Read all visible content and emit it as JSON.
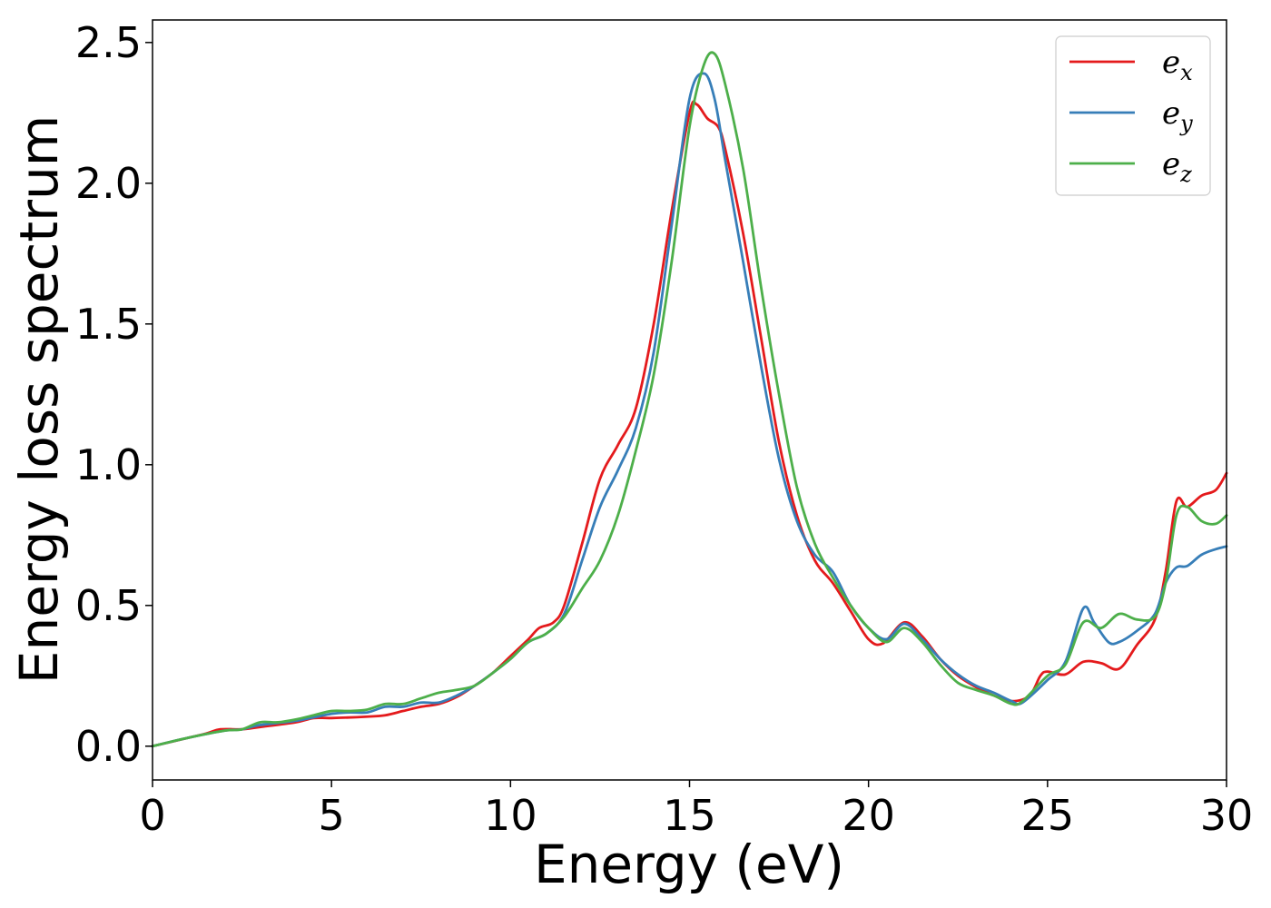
{
  "chart_data": {
    "type": "line",
    "title": "",
    "xlabel": "Energy (eV)",
    "ylabel": "Energy loss spectrum",
    "xlim": [
      0,
      30
    ],
    "ylim": [
      -0.12,
      2.58
    ],
    "xticks": [
      0,
      5,
      10,
      15,
      20,
      25,
      30
    ],
    "yticks": [
      0.0,
      0.5,
      1.0,
      1.5,
      2.0,
      2.5
    ],
    "xtick_labels": [
      "0",
      "5",
      "10",
      "15",
      "20",
      "25",
      "30"
    ],
    "ytick_labels": [
      "0.0",
      "0.5",
      "1.0",
      "1.5",
      "2.0",
      "2.5"
    ],
    "grid": false,
    "legend_position": "top-right",
    "series": [
      {
        "name": "e",
        "subscript": "x",
        "color": "#e41a1c",
        "points": [
          [
            0,
            0.0
          ],
          [
            1,
            0.03
          ],
          [
            1.5,
            0.045
          ],
          [
            1.9,
            0.06
          ],
          [
            2.5,
            0.06
          ],
          [
            3,
            0.068
          ],
          [
            4,
            0.085
          ],
          [
            4.5,
            0.1
          ],
          [
            5,
            0.1
          ],
          [
            6,
            0.105
          ],
          [
            6.5,
            0.11
          ],
          [
            7,
            0.125
          ],
          [
            7.5,
            0.14
          ],
          [
            8,
            0.15
          ],
          [
            8.5,
            0.175
          ],
          [
            9,
            0.215
          ],
          [
            9.5,
            0.26
          ],
          [
            10,
            0.32
          ],
          [
            10.5,
            0.38
          ],
          [
            10.8,
            0.42
          ],
          [
            11.2,
            0.44
          ],
          [
            11.5,
            0.5
          ],
          [
            12,
            0.72
          ],
          [
            12.5,
            0.95
          ],
          [
            13,
            1.07
          ],
          [
            13.5,
            1.2
          ],
          [
            14,
            1.5
          ],
          [
            14.5,
            1.9
          ],
          [
            15,
            2.25
          ],
          [
            15.2,
            2.28
          ],
          [
            15.5,
            2.23
          ],
          [
            15.8,
            2.2
          ],
          [
            16,
            2.12
          ],
          [
            16.5,
            1.82
          ],
          [
            17,
            1.45
          ],
          [
            17.5,
            1.08
          ],
          [
            18,
            0.82
          ],
          [
            18.5,
            0.66
          ],
          [
            19,
            0.58
          ],
          [
            19.5,
            0.48
          ],
          [
            20,
            0.38
          ],
          [
            20.4,
            0.365
          ],
          [
            21,
            0.44
          ],
          [
            21.5,
            0.39
          ],
          [
            22,
            0.31
          ],
          [
            22.5,
            0.25
          ],
          [
            23,
            0.21
          ],
          [
            23.5,
            0.18
          ],
          [
            24,
            0.16
          ],
          [
            24.5,
            0.18
          ],
          [
            24.8,
            0.25
          ],
          [
            25,
            0.265
          ],
          [
            25.5,
            0.255
          ],
          [
            26,
            0.3
          ],
          [
            26.5,
            0.295
          ],
          [
            27,
            0.275
          ],
          [
            27.5,
            0.36
          ],
          [
            28,
            0.45
          ],
          [
            28.3,
            0.62
          ],
          [
            28.6,
            0.87
          ],
          [
            28.9,
            0.85
          ],
          [
            29.3,
            0.89
          ],
          [
            29.7,
            0.91
          ],
          [
            30,
            0.97
          ]
        ]
      },
      {
        "name": "e",
        "subscript": "y",
        "color": "#377eb8",
        "points": [
          [
            0,
            0.0
          ],
          [
            1,
            0.03
          ],
          [
            2,
            0.055
          ],
          [
            2.5,
            0.06
          ],
          [
            3,
            0.075
          ],
          [
            4,
            0.09
          ],
          [
            5,
            0.115
          ],
          [
            5.5,
            0.12
          ],
          [
            6,
            0.12
          ],
          [
            6.5,
            0.14
          ],
          [
            7,
            0.14
          ],
          [
            7.5,
            0.155
          ],
          [
            8,
            0.155
          ],
          [
            8.5,
            0.18
          ],
          [
            9,
            0.215
          ],
          [
            9.5,
            0.26
          ],
          [
            10,
            0.31
          ],
          [
            10.5,
            0.37
          ],
          [
            11,
            0.4
          ],
          [
            11.5,
            0.47
          ],
          [
            12,
            0.66
          ],
          [
            12.5,
            0.85
          ],
          [
            13,
            0.98
          ],
          [
            13.5,
            1.13
          ],
          [
            14,
            1.4
          ],
          [
            14.5,
            1.85
          ],
          [
            15,
            2.3
          ],
          [
            15.4,
            2.39
          ],
          [
            15.7,
            2.3
          ],
          [
            16,
            2.08
          ],
          [
            16.5,
            1.72
          ],
          [
            17,
            1.35
          ],
          [
            17.5,
            1.02
          ],
          [
            18,
            0.8
          ],
          [
            18.5,
            0.68
          ],
          [
            19,
            0.62
          ],
          [
            19.5,
            0.5
          ],
          [
            20,
            0.42
          ],
          [
            20.5,
            0.38
          ],
          [
            21,
            0.435
          ],
          [
            21.5,
            0.38
          ],
          [
            22,
            0.31
          ],
          [
            22.5,
            0.255
          ],
          [
            23,
            0.215
          ],
          [
            23.5,
            0.19
          ],
          [
            24,
            0.16
          ],
          [
            24.3,
            0.155
          ],
          [
            25,
            0.235
          ],
          [
            25.5,
            0.3
          ],
          [
            26,
            0.49
          ],
          [
            26.3,
            0.44
          ],
          [
            26.7,
            0.37
          ],
          [
            27,
            0.37
          ],
          [
            27.5,
            0.41
          ],
          [
            28,
            0.47
          ],
          [
            28.3,
            0.58
          ],
          [
            28.6,
            0.635
          ],
          [
            28.9,
            0.64
          ],
          [
            29.3,
            0.68
          ],
          [
            29.7,
            0.7
          ],
          [
            30,
            0.71
          ]
        ]
      },
      {
        "name": "e",
        "subscript": "z",
        "color": "#4daf4a",
        "points": [
          [
            0,
            0.0
          ],
          [
            1,
            0.03
          ],
          [
            2,
            0.055
          ],
          [
            2.5,
            0.06
          ],
          [
            3,
            0.085
          ],
          [
            3.5,
            0.085
          ],
          [
            4,
            0.095
          ],
          [
            4.5,
            0.11
          ],
          [
            5,
            0.125
          ],
          [
            5.5,
            0.125
          ],
          [
            6,
            0.13
          ],
          [
            6.5,
            0.15
          ],
          [
            7,
            0.15
          ],
          [
            7.5,
            0.17
          ],
          [
            8,
            0.19
          ],
          [
            8.5,
            0.2
          ],
          [
            9,
            0.215
          ],
          [
            9.5,
            0.26
          ],
          [
            10,
            0.31
          ],
          [
            10.5,
            0.37
          ],
          [
            11,
            0.4
          ],
          [
            11.5,
            0.46
          ],
          [
            12,
            0.56
          ],
          [
            12.5,
            0.66
          ],
          [
            13,
            0.82
          ],
          [
            13.5,
            1.05
          ],
          [
            14,
            1.32
          ],
          [
            14.5,
            1.72
          ],
          [
            15,
            2.2
          ],
          [
            15.4,
            2.42
          ],
          [
            15.7,
            2.46
          ],
          [
            16,
            2.35
          ],
          [
            16.5,
            2.05
          ],
          [
            17,
            1.63
          ],
          [
            17.5,
            1.25
          ],
          [
            18,
            0.92
          ],
          [
            18.5,
            0.72
          ],
          [
            19,
            0.6
          ],
          [
            19.5,
            0.5
          ],
          [
            20,
            0.42
          ],
          [
            20.5,
            0.37
          ],
          [
            21,
            0.42
          ],
          [
            21.5,
            0.37
          ],
          [
            22,
            0.29
          ],
          [
            22.5,
            0.225
          ],
          [
            23,
            0.2
          ],
          [
            23.5,
            0.18
          ],
          [
            24,
            0.15
          ],
          [
            24.3,
            0.16
          ],
          [
            25,
            0.25
          ],
          [
            25.5,
            0.29
          ],
          [
            26,
            0.44
          ],
          [
            26.5,
            0.42
          ],
          [
            27,
            0.47
          ],
          [
            27.5,
            0.45
          ],
          [
            28,
            0.46
          ],
          [
            28.3,
            0.58
          ],
          [
            28.6,
            0.82
          ],
          [
            28.9,
            0.85
          ],
          [
            29.3,
            0.8
          ],
          [
            29.7,
            0.79
          ],
          [
            30,
            0.82
          ]
        ]
      }
    ]
  }
}
